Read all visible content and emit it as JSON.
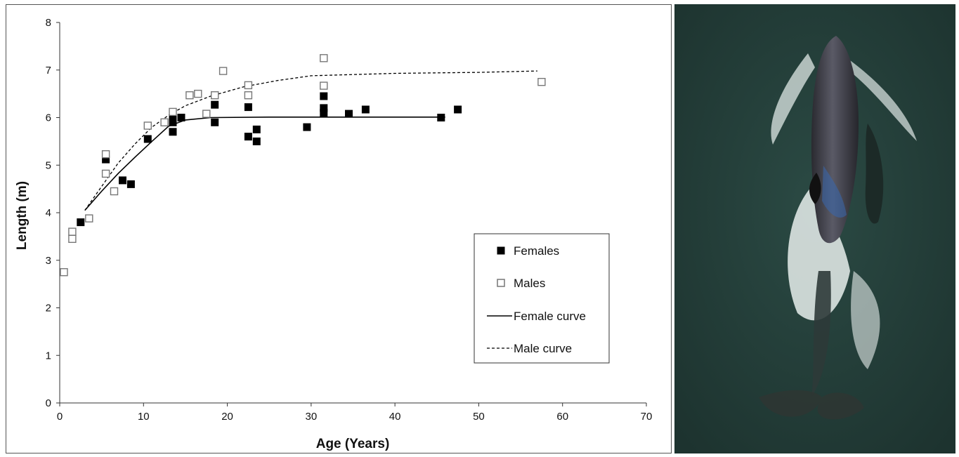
{
  "chart_data": {
    "type": "scatter",
    "xlabel": "Age (Years)",
    "ylabel": "Length (m)",
    "xlim": [
      0,
      70
    ],
    "ylim": [
      0,
      8
    ],
    "xticks": [
      0,
      10,
      20,
      30,
      40,
      50,
      60,
      70
    ],
    "yticks": [
      0,
      1,
      2,
      3,
      4,
      5,
      6,
      7,
      8
    ],
    "grid": false,
    "legend_position": "lower-right",
    "series": [
      {
        "name": "Females",
        "marker": "filled-square",
        "color": "#000000",
        "points": [
          [
            2.5,
            3.8
          ],
          [
            5.5,
            5.12
          ],
          [
            7.5,
            4.68
          ],
          [
            8.5,
            4.6
          ],
          [
            10.5,
            5.55
          ],
          [
            13.5,
            5.7
          ],
          [
            13.5,
            5.9
          ],
          [
            13.5,
            6.0
          ],
          [
            14.5,
            6.0
          ],
          [
            18.5,
            6.27
          ],
          [
            18.5,
            5.9
          ],
          [
            22.5,
            6.22
          ],
          [
            22.5,
            5.6
          ],
          [
            23.5,
            5.5
          ],
          [
            23.5,
            5.75
          ],
          [
            29.5,
            5.8
          ],
          [
            31.5,
            6.45
          ],
          [
            31.5,
            6.2
          ],
          [
            31.5,
            6.1
          ],
          [
            34.5,
            6.08
          ],
          [
            36.5,
            6.17
          ],
          [
            45.5,
            6.0
          ],
          [
            47.5,
            6.17
          ]
        ]
      },
      {
        "name": "Males",
        "marker": "open-square",
        "color": "#777777",
        "points": [
          [
            0.5,
            2.75
          ],
          [
            1.5,
            3.45
          ],
          [
            1.5,
            3.6
          ],
          [
            3.5,
            3.88
          ],
          [
            5.5,
            4.82
          ],
          [
            5.5,
            5.23
          ],
          [
            6.5,
            4.45
          ],
          [
            10.5,
            5.83
          ],
          [
            12.5,
            5.9
          ],
          [
            13.5,
            6.12
          ],
          [
            15.5,
            6.47
          ],
          [
            16.5,
            6.5
          ],
          [
            17.5,
            6.08
          ],
          [
            18.5,
            6.47
          ],
          [
            19.5,
            6.98
          ],
          [
            22.5,
            6.47
          ],
          [
            22.5,
            6.68
          ],
          [
            31.5,
            7.25
          ],
          [
            31.5,
            6.67
          ],
          [
            57.5,
            6.75
          ]
        ]
      },
      {
        "name": "Female curve",
        "type": "line",
        "style": "solid",
        "color": "#000000",
        "points": [
          [
            3,
            4.05
          ],
          [
            5,
            4.45
          ],
          [
            7,
            4.83
          ],
          [
            9,
            5.17
          ],
          [
            11,
            5.5
          ],
          [
            13,
            5.82
          ],
          [
            15,
            5.95
          ],
          [
            18,
            6.0
          ],
          [
            25,
            6.01
          ],
          [
            35,
            6.01
          ],
          [
            46,
            6.01
          ]
        ]
      },
      {
        "name": "Male curve",
        "type": "line",
        "style": "dashed",
        "color": "#000000",
        "points": [
          [
            3,
            4.05
          ],
          [
            5,
            4.55
          ],
          [
            7,
            5.05
          ],
          [
            9,
            5.45
          ],
          [
            11,
            5.8
          ],
          [
            13,
            6.05
          ],
          [
            15,
            6.25
          ],
          [
            18,
            6.45
          ],
          [
            22,
            6.65
          ],
          [
            26,
            6.78
          ],
          [
            30,
            6.88
          ],
          [
            40,
            6.93
          ],
          [
            50,
            6.95
          ],
          [
            57,
            6.98
          ]
        ]
      }
    ]
  },
  "photo": {
    "icon": "killer-whale-aerial-photo",
    "colors": {
      "sea": "#233d38",
      "whale_body": "#3a3a42",
      "foam": "#e8efec"
    }
  }
}
